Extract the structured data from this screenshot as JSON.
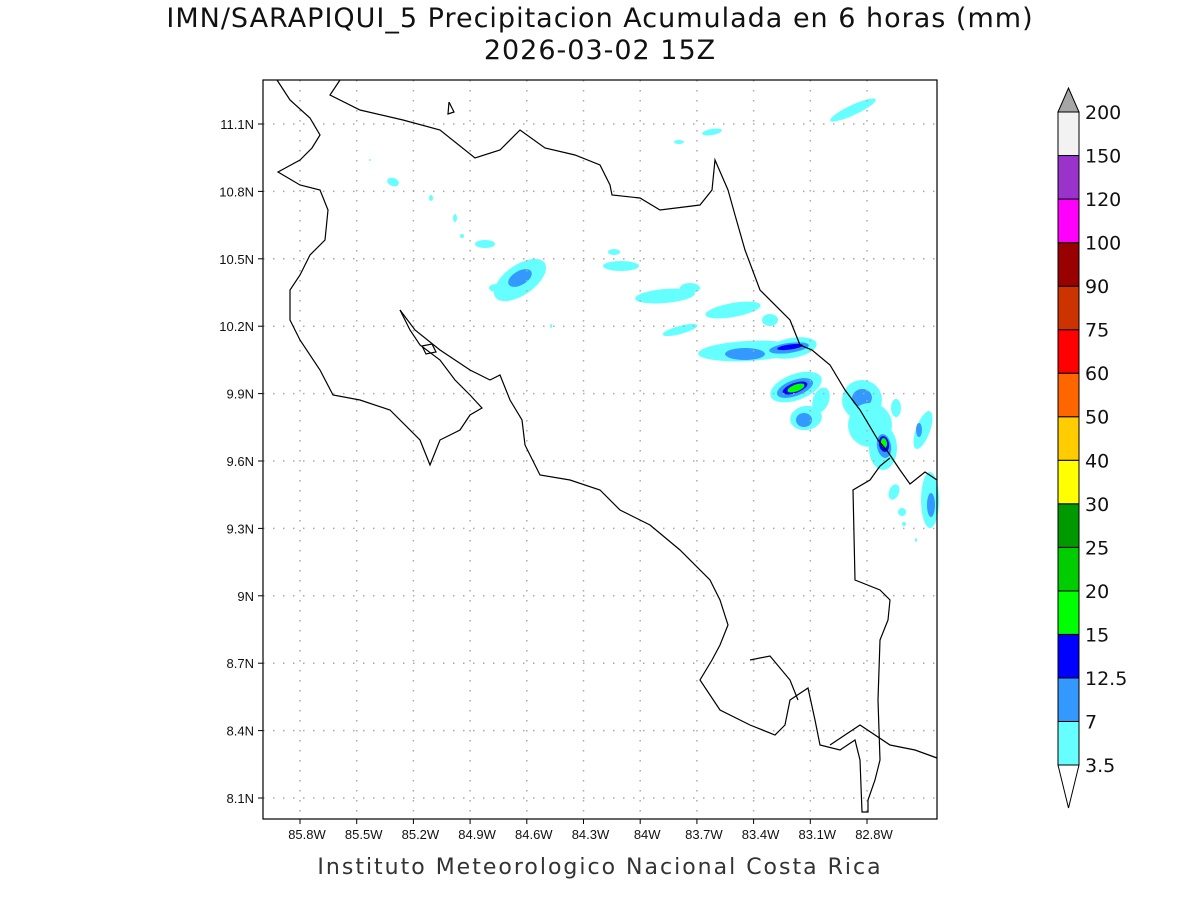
{
  "title": {
    "line1": "IMN/SARAPIQUI_5 Precipitacion Acumulada en 6 horas (mm)",
    "line2": "2026-03-02 15Z"
  },
  "map": {
    "region": "Costa Rica",
    "lon_ticks": [
      "85.8W",
      "85.5W",
      "85.2W",
      "84.9W",
      "84.6W",
      "84.3W",
      "84W",
      "83.7W",
      "83.4W",
      "83.1W",
      "82.8W"
    ],
    "lat_ticks": [
      "11.1N",
      "10.8N",
      "10.5N",
      "10.2N",
      "9.9N",
      "9.6N",
      "9.3N",
      "9N",
      "8.7N",
      "8.4N",
      "8.1N"
    ],
    "grid": "dotted"
  },
  "colorbar": {
    "levels": [
      "3.5",
      "7",
      "12.5",
      "15",
      "20",
      "25",
      "30",
      "40",
      "50",
      "60",
      "75",
      "90",
      "100",
      "120",
      "150",
      "200"
    ],
    "colors": [
      "#66ffff",
      "#3399ff",
      "#0000ff",
      "#00ff00",
      "#00cc00",
      "#009900",
      "#ffff00",
      "#ffcc00",
      "#ff6600",
      "#ff0000",
      "#cc3300",
      "#990000",
      "#ff00ff",
      "#9933cc",
      "#f2f2f2"
    ],
    "over_color": "#a6a6a6",
    "under_color": "#ffffff"
  },
  "footer": "Instituto Meteorologico Nacional Costa Rica"
}
